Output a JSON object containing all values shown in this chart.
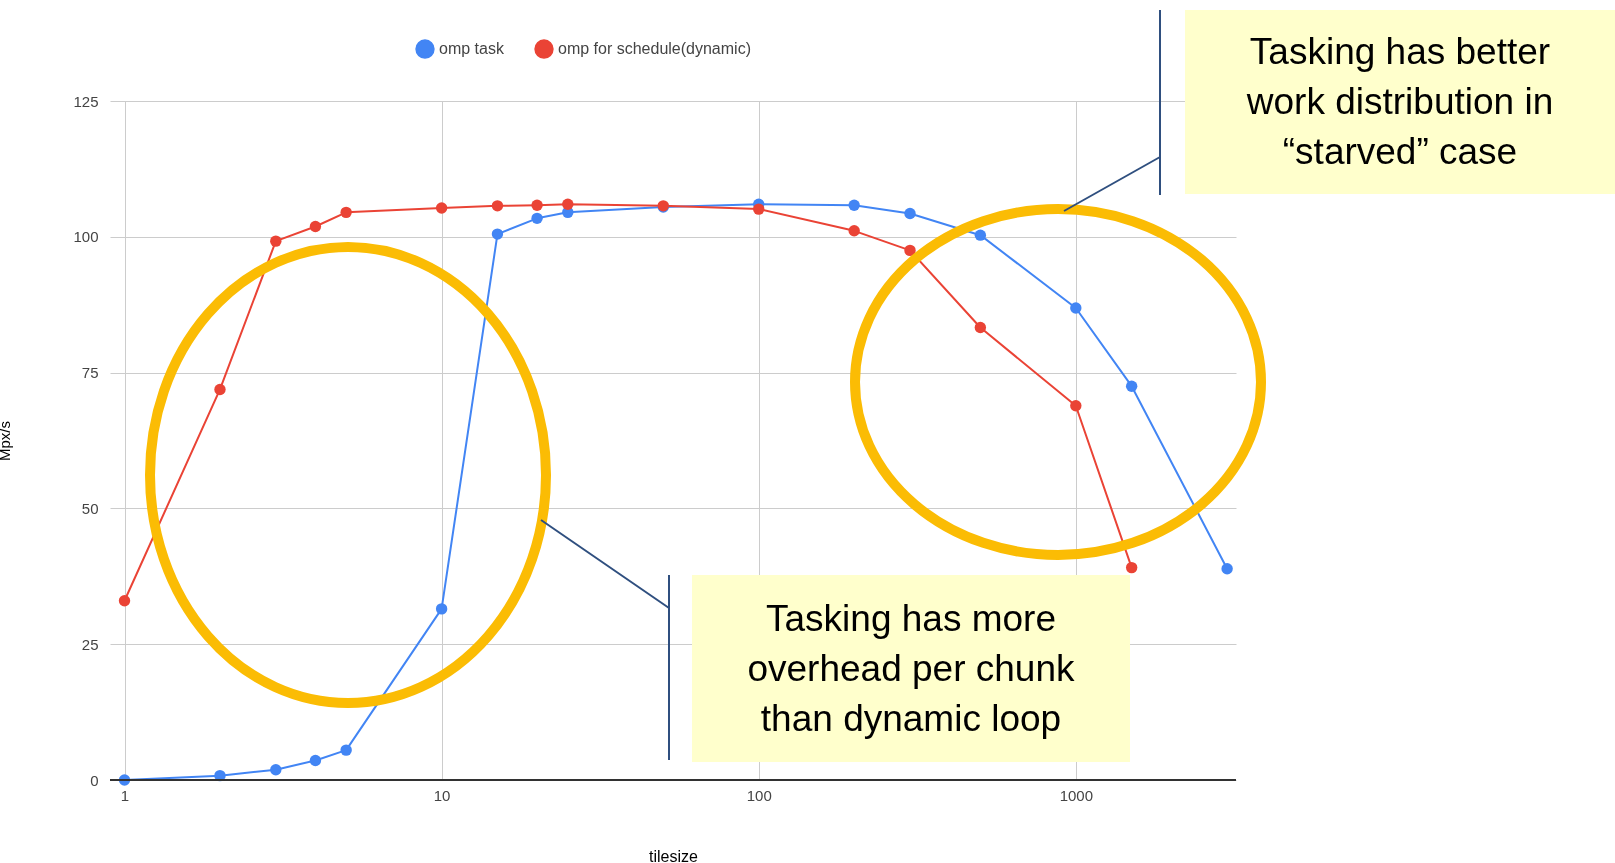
{
  "chart_data": {
    "type": "line",
    "xlabel": "tilesize",
    "ylabel": "Mpx/s",
    "log": "x",
    "x": [
      1,
      2,
      3,
      4,
      5,
      10,
      15,
      20,
      25,
      50,
      100,
      200,
      300,
      500,
      1000,
      1500,
      3000
    ],
    "series": [
      {
        "name": "omp task",
        "color": "#4285f4",
        "values": [
          0,
          0.8,
          1.9,
          3.6,
          5.5,
          31.5,
          100.5,
          103.4,
          104.5,
          105.5,
          106,
          105.8,
          104.3,
          100.3,
          86.9,
          72.5,
          38.9
        ]
      },
      {
        "name": "omp for schedule(dynamic)",
        "color": "#ea4335",
        "values": [
          33,
          71.9,
          99.2,
          101.9,
          104.5,
          105.3,
          105.7,
          105.8,
          106,
          105.7,
          105.1,
          101.1,
          97.5,
          83.3,
          68.9,
          39.1,
          null
        ]
      }
    ],
    "xlim": [
      0.9,
      3200
    ],
    "xticks": [
      1,
      10,
      100,
      1000
    ],
    "ylim": [
      0,
      125
    ],
    "yticks": [
      0,
      25,
      50,
      75,
      100,
      125
    ],
    "grid": true,
    "legend": "top",
    "marker": "circle",
    "line_style": "solid",
    "annotations": [
      "Tasking has better work distribution in “starved” case",
      "Tasking has more overhead per chunk than dynamic loop"
    ]
  }
}
